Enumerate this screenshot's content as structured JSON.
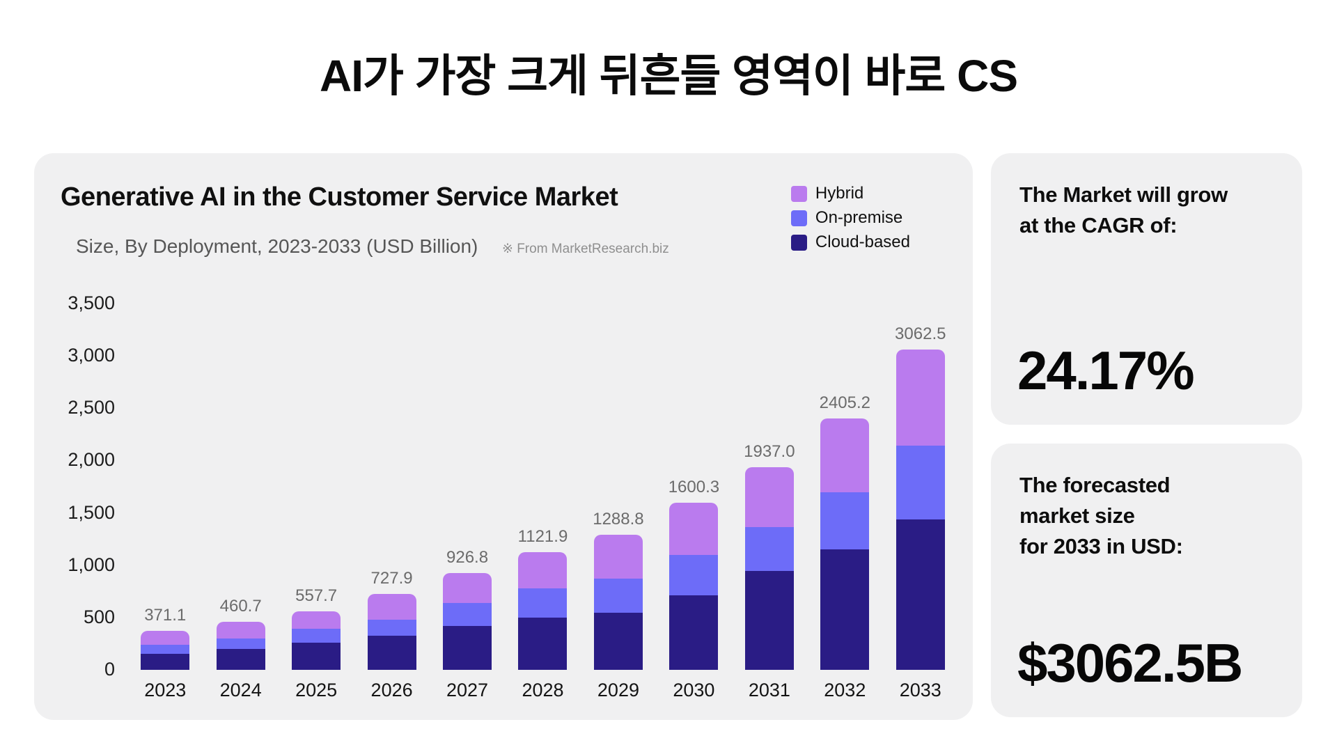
{
  "page_title": "AI가 가장 크게 뒤흔들 영역이 바로 CS",
  "chart_card": {
    "title": "Generative AI in the Customer Service Market",
    "subtitle": "Size, By Deployment, 2023-2033 (USD Billion)",
    "source_note": "※ From MarketResearch.biz",
    "legend": [
      {
        "label": "Hybrid",
        "color": "#ba7bee"
      },
      {
        "label": "On-premise",
        "color": "#6d6cf8"
      },
      {
        "label": "Cloud-based",
        "color": "#2a1c85"
      }
    ]
  },
  "chart_data": {
    "type": "bar",
    "stacked": true,
    "title": "Generative AI in the Customer Service Market",
    "subtitle": "Size, By Deployment, 2023-2033 (USD Billion)",
    "xlabel": "",
    "ylabel": "USD Billion",
    "ylim": [
      0,
      3500
    ],
    "ytick_step": 500,
    "ytick_labels": [
      "0",
      "500",
      "1,000",
      "1,500",
      "2,000",
      "2,500",
      "3,000",
      "3,500"
    ],
    "grid": false,
    "legend_position": "top-right",
    "categories": [
      "2023",
      "2024",
      "2025",
      "2026",
      "2027",
      "2028",
      "2029",
      "2030",
      "2031",
      "2032",
      "2033"
    ],
    "series": [
      {
        "name": "Cloud-based",
        "color": "#2a1c85",
        "values": [
          150.0,
          203.0,
          261.7,
          323.9,
          417.8,
          495.9,
          545.8,
          711.3,
          944.0,
          1148.2,
          1439.5
        ]
      },
      {
        "name": "On-premise",
        "color": "#6d6cf8",
        "values": [
          92.1,
          96.7,
          132.0,
          157.0,
          224.0,
          283.0,
          327.0,
          387.0,
          417.0,
          551.0,
          700.0
        ]
      },
      {
        "name": "Hybrid",
        "color": "#ba7bee",
        "values": [
          129.0,
          161.0,
          164.0,
          247.0,
          285.0,
          343.0,
          416.0,
          502.0,
          576.0,
          706.0,
          923.0
        ]
      }
    ],
    "totals": [
      371.1,
      460.7,
      557.7,
      727.9,
      926.8,
      1121.9,
      1288.8,
      1600.3,
      1937.0,
      2405.2,
      3062.5
    ],
    "total_labels": [
      "371.1",
      "460.7",
      "557.7",
      "727.9",
      "926.8",
      "1121.9",
      "1288.8",
      "1600.3",
      "1937.0",
      "2405.2",
      "3062.5"
    ]
  },
  "stat_cards": [
    {
      "heading_lines": [
        "The Market will grow",
        "at the CAGR of:"
      ],
      "value": "24.17%"
    },
    {
      "heading_lines": [
        "The forecasted",
        "market size",
        "for 2033 in USD:"
      ],
      "value": "$3062.5B"
    }
  ]
}
